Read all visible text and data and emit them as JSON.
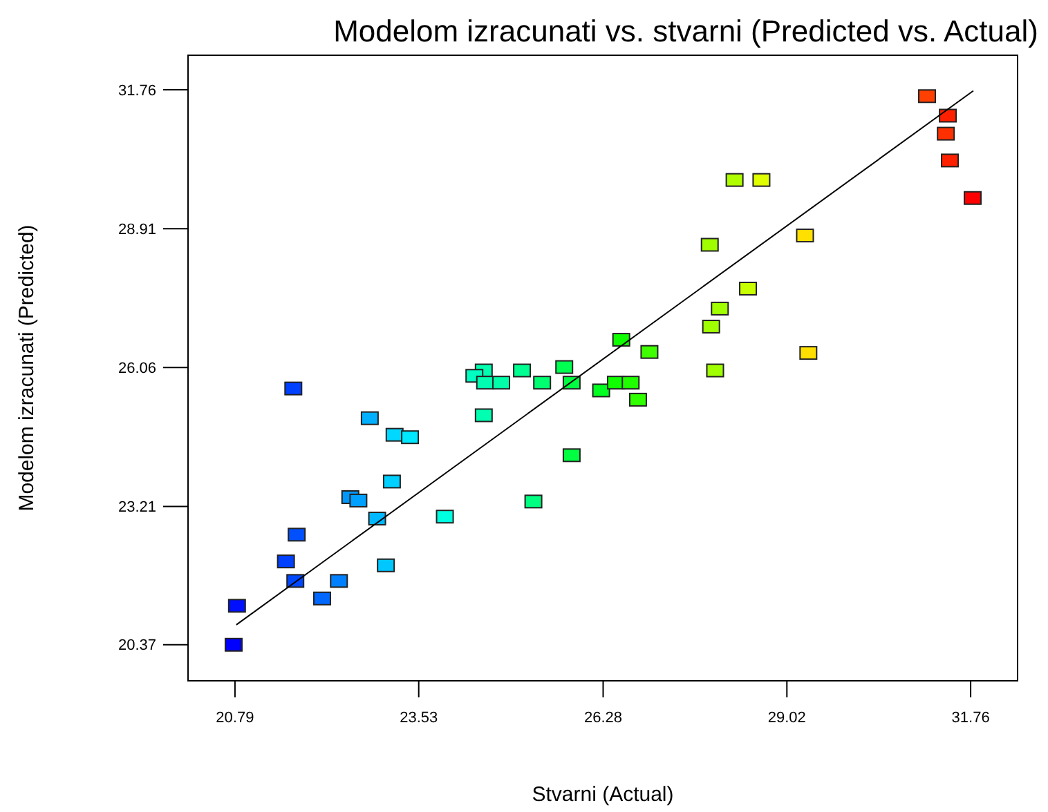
{
  "chart_data": {
    "type": "scatter",
    "title": "Modelom izracunati vs. stvarni (Predicted vs. Actual)",
    "xlabel": "Stvarni (Actual)",
    "ylabel": "Modelom izracunati (Predicted)",
    "xlim": [
      20.09,
      32.46
    ],
    "ylim": [
      19.63,
      32.47
    ],
    "xticks": [
      20.79,
      23.53,
      26.28,
      29.02,
      31.76
    ],
    "yticks": [
      20.37,
      23.21,
      26.06,
      28.91,
      31.76
    ],
    "marker": "square",
    "series": [
      {
        "x": [
          20.77,
          20.82,
          21.66,
          22.8,
          23.17,
          23.4,
          23.13,
          22.51,
          22.63,
          22.91,
          23.92,
          21.71,
          21.55,
          23.04,
          21.69,
          22.34,
          22.09,
          24.5,
          24.36,
          24.52,
          24.76,
          25.07,
          25.37,
          25.7,
          25.81,
          26.25,
          26.47,
          26.69,
          26.8,
          26.55,
          26.97,
          24.5,
          25.81,
          25.24,
          27.95,
          31.11,
          31.42,
          31.39,
          31.45,
          31.79,
          28.24,
          28.64,
          27.87,
          29.29,
          28.44,
          28.02,
          27.89,
          29.34
        ],
        "values": [
          20.37,
          21.17,
          25.63,
          25.02,
          24.68,
          24.63,
          23.72,
          23.4,
          23.33,
          22.96,
          23.0,
          22.63,
          22.08,
          22.0,
          21.68,
          21.68,
          21.32,
          26.0,
          25.89,
          25.75,
          25.75,
          26.0,
          25.75,
          26.07,
          25.75,
          25.59,
          25.75,
          25.75,
          25.4,
          26.63,
          26.38,
          25.08,
          24.26,
          23.31,
          26.0,
          31.63,
          31.23,
          30.86,
          30.31,
          29.54,
          29.91,
          29.91,
          28.58,
          28.77,
          27.68,
          27.27,
          26.9,
          26.36
        ],
        "colors": [
          "#0000ff",
          "#0010ff",
          "#0040ff",
          "#00b0ff",
          "#00d8ff",
          "#00e8ff",
          "#00d0ff",
          "#0098ff",
          "#00a0ff",
          "#00b8ff",
          "#00ffe0",
          "#0050ff",
          "#0040ff",
          "#00c8ff",
          "#0048ff",
          "#0080ff",
          "#0068ff",
          "#00ffb0",
          "#00ffc0",
          "#00ffb0",
          "#00ffa8",
          "#00ff90",
          "#00ff70",
          "#00ff50",
          "#00ff40",
          "#00ff20",
          "#10ff00",
          "#20ff00",
          "#30ff00",
          "#10ff00",
          "#40ff00",
          "#00ffb0",
          "#00ff40",
          "#00ff80",
          "#a0ff00",
          "#ff4000",
          "#ff2000",
          "#ff3000",
          "#ff2000",
          "#ff0000",
          "#b0ff00",
          "#e0ff00",
          "#a0ff00",
          "#ffe000",
          "#c8ff00",
          "#a0ff00",
          "#a0ff00",
          "#ffe000"
        ]
      },
      {
        "type": "line",
        "x": [
          20.81,
          31.8
        ],
        "values": [
          20.78,
          31.74
        ],
        "color": "#000000",
        "marker": "none",
        "line_style": "solid"
      }
    ]
  }
}
